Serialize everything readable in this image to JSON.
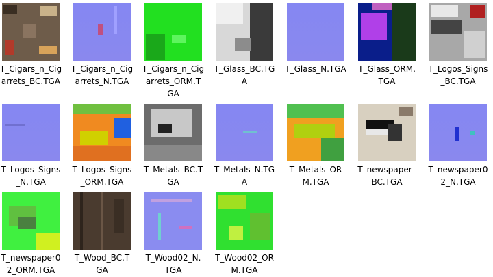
{
  "files": [
    {
      "lines": [
        "T_Cigars_n_Cig",
        "arrets_BC.TGA"
      ]
    },
    {
      "lines": [
        "T_Cigars_n_Cig",
        "arrets_N.TGA"
      ]
    },
    {
      "lines": [
        "T_Cigars_n_Cig",
        "arrets_ORM.T",
        "GA"
      ]
    },
    {
      "lines": [
        "T_Glass_BC.TG",
        "A"
      ]
    },
    {
      "lines": [
        "T_Glass_N.TGA"
      ]
    },
    {
      "lines": [
        "T_Glass_ORM.",
        "TGA"
      ]
    },
    {
      "lines": [
        "T_Logos_Signs",
        "_BC.TGA"
      ]
    },
    {
      "lines": [
        "T_Logos_Signs",
        "_N.TGA"
      ]
    },
    {
      "lines": [
        "T_Logos_Signs",
        "_ORM.TGA"
      ]
    },
    {
      "lines": [
        "T_Metals_BC.T",
        "GA"
      ]
    },
    {
      "lines": [
        "T_Metals_N.TG",
        "A"
      ]
    },
    {
      "lines": [
        "T_Metals_OR",
        "M.TGA"
      ]
    },
    {
      "lines": [
        "T_newspaper_",
        "BC.TGA"
      ]
    },
    {
      "lines": [
        "T_newspaper0",
        "2_N.TGA"
      ]
    },
    {
      "lines": [
        "T_newspaper0",
        "2_ORM.TGA"
      ]
    },
    {
      "lines": [
        "T_Wood_BC.T",
        "GA"
      ]
    },
    {
      "lines": [
        "T_Wood02_N.",
        "TGA"
      ]
    },
    {
      "lines": [
        "T_Wood02_OR",
        "M.TGA"
      ]
    }
  ]
}
